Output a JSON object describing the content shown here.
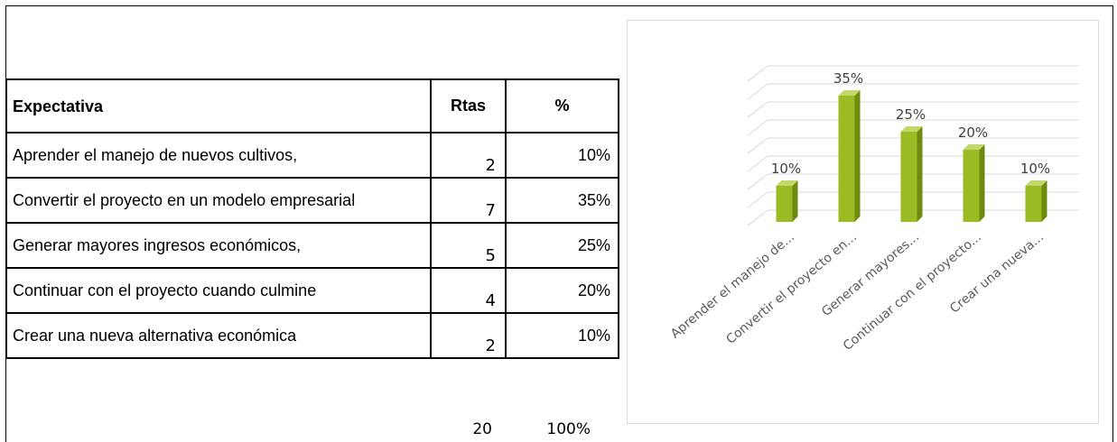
{
  "table": {
    "headers": {
      "expectativa": "Expectativa",
      "rtas": "Rtas",
      "pct": "%"
    },
    "rows": [
      {
        "label": "Aprender el manejo de nuevos cultivos,",
        "rtas": "2",
        "pct": "10%"
      },
      {
        "label": "Convertir el proyecto en  un modelo empresarial",
        "rtas": "7",
        "pct": "35%"
      },
      {
        "label": "Generar mayores ingresos económicos,",
        "rtas": "5",
        "pct": "25%"
      },
      {
        "label": "Continuar con el proyecto cuando culmine",
        "rtas": "4",
        "pct": "20%"
      },
      {
        "label": "Crear una nueva alternativa económica",
        "rtas": "2",
        "pct": "10%"
      }
    ],
    "total": {
      "rtas": "20",
      "pct": "100%"
    }
  },
  "chart_data": {
    "type": "bar",
    "categories": [
      "Aprender el manejo de...",
      "Convertir el proyecto en...",
      "Generar mayores...",
      "Continuar con el proyecto...",
      "Crear una nueva..."
    ],
    "values": [
      10,
      35,
      25,
      20,
      10
    ],
    "data_labels": [
      "10%",
      "35%",
      "25%",
      "20%",
      "10%"
    ],
    "ylim": [
      0,
      40
    ],
    "bar_color": "#9bbb25",
    "bar_side_color": "#6e8a0f",
    "grid": true,
    "style": "3d-column"
  }
}
